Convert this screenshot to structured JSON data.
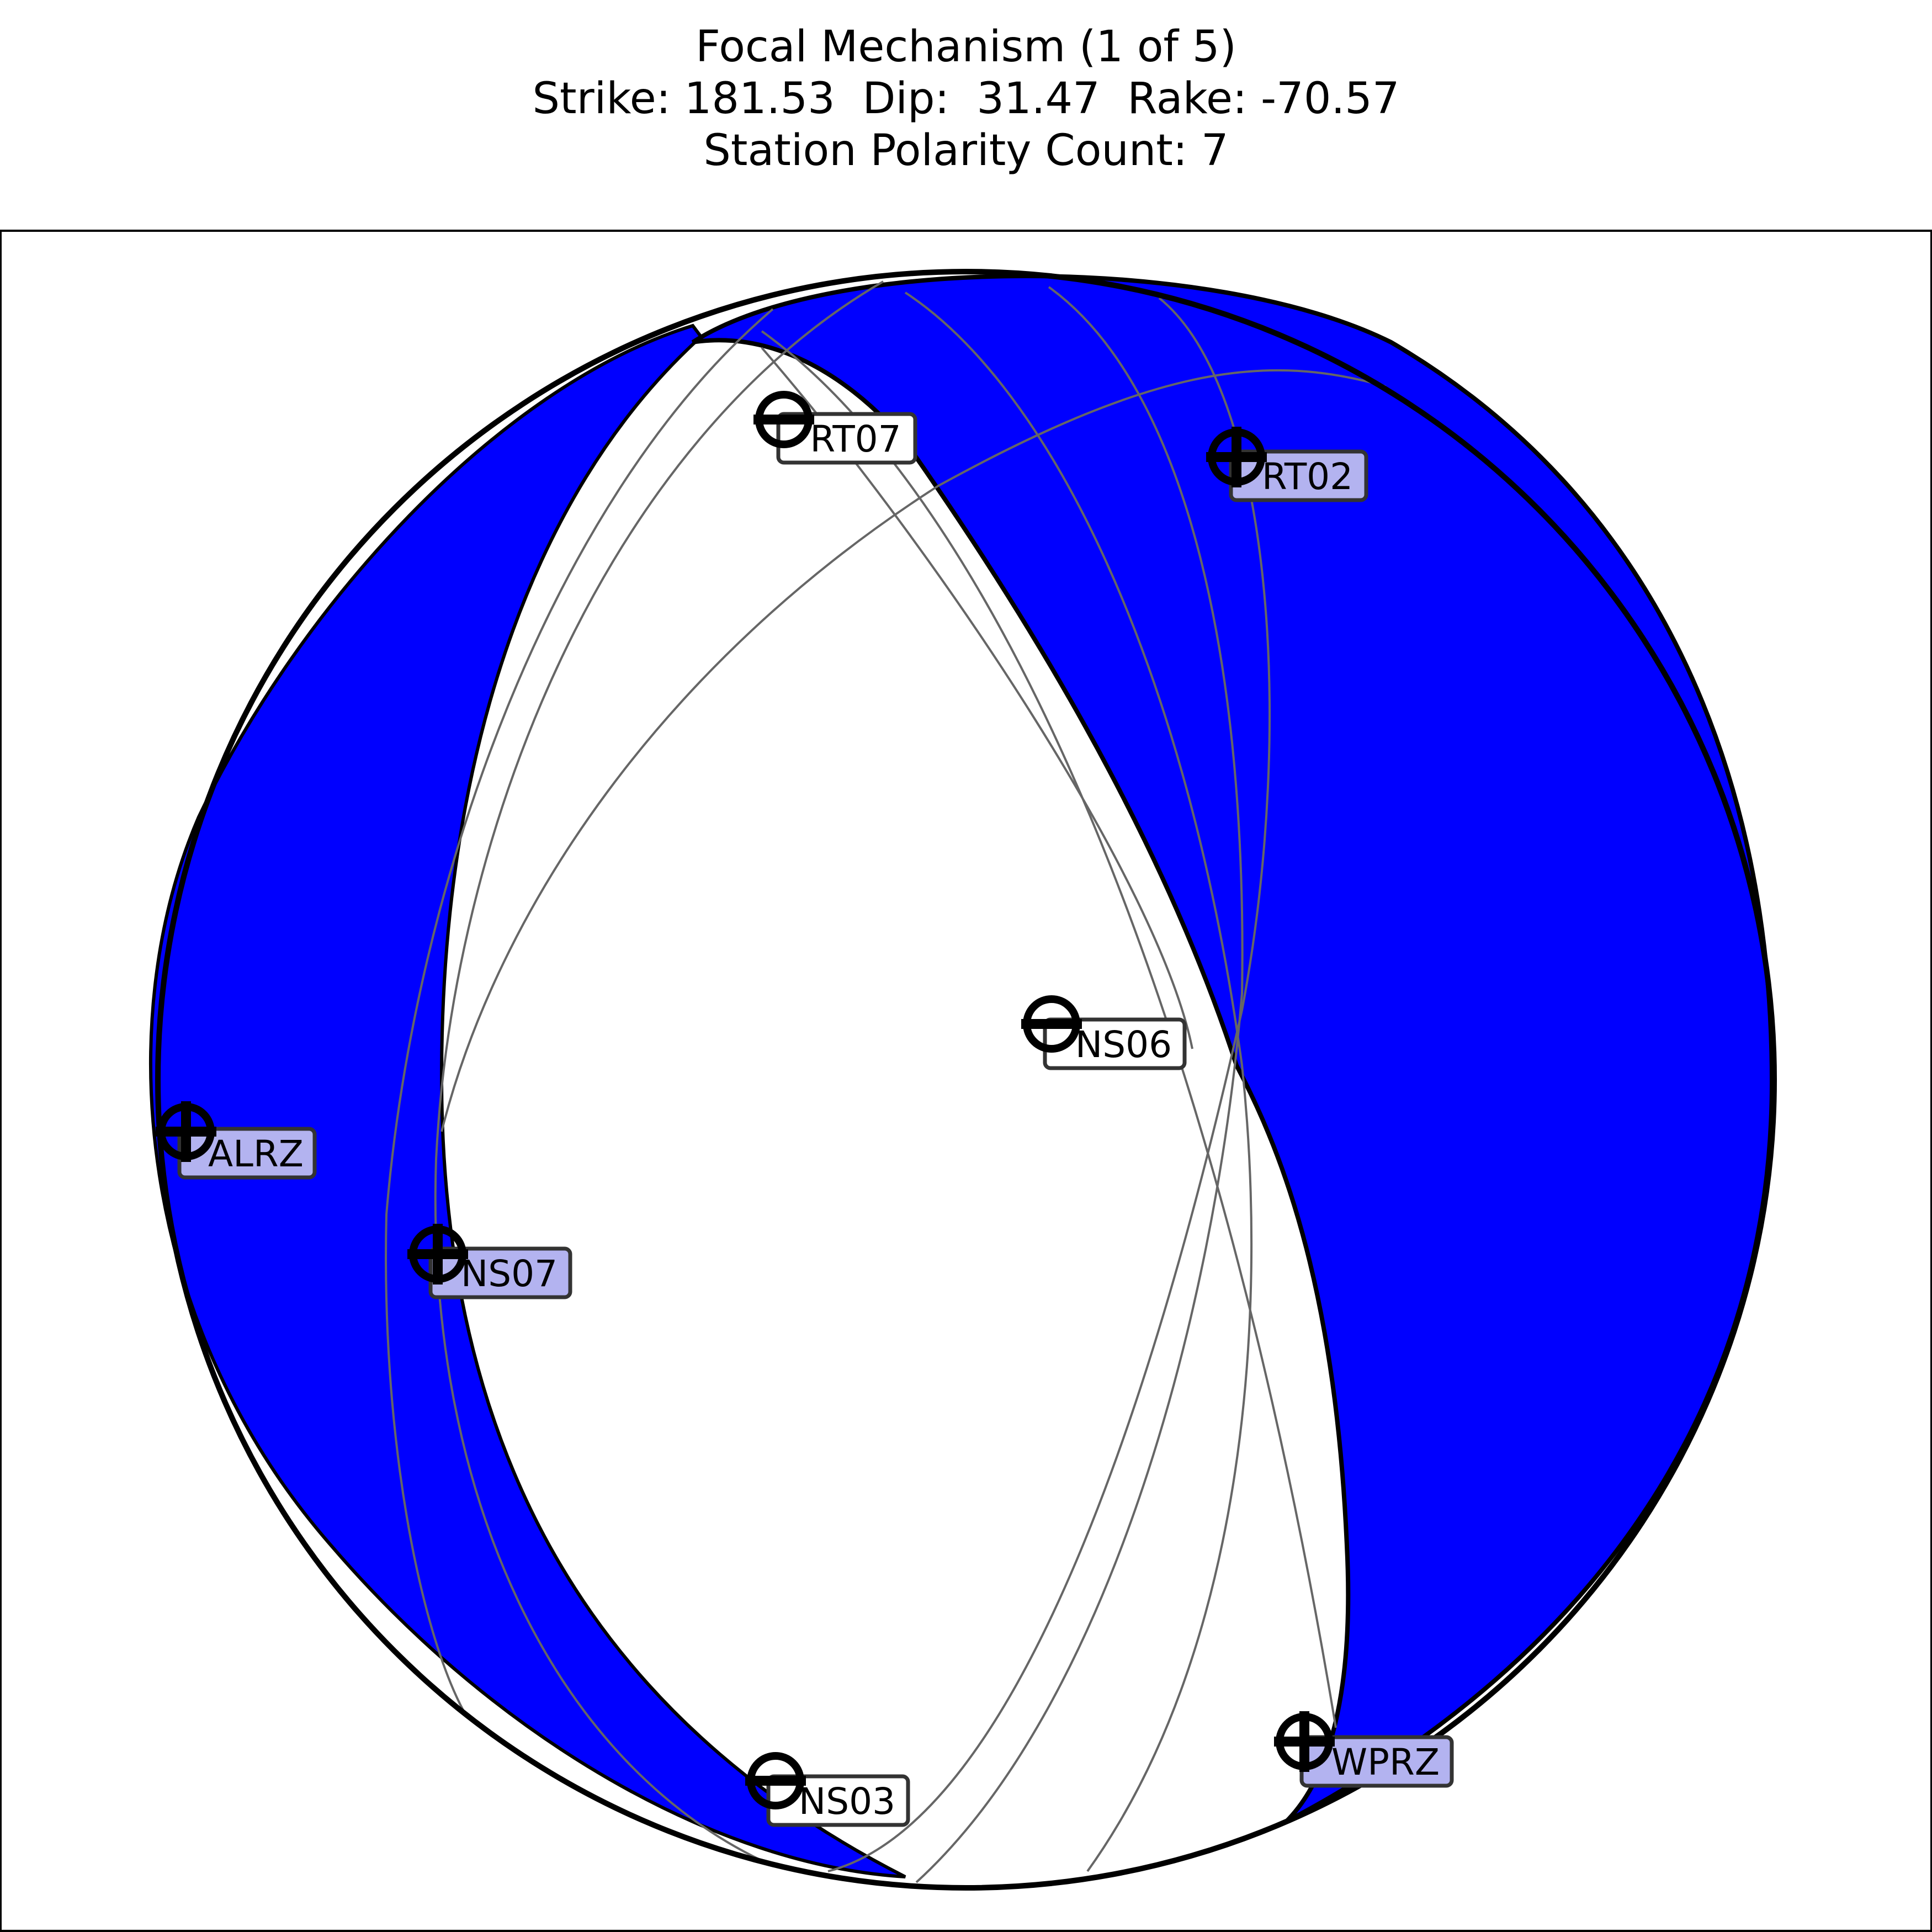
{
  "title": {
    "line1": "Focal Mechanism (1 of 5)",
    "line2": "Strike: 181.53  Dip:  31.47  Rake: -70.57",
    "line3": "Station Polarity Count: 7"
  },
  "colors": {
    "compressional_fill": "#0000ff",
    "outline": "#000000",
    "alt_planes": "#666666",
    "label_up_bg": "#b3b3f0",
    "label_down_bg": "#ffffff"
  },
  "stations": [
    {
      "name": "RT07",
      "polarity": "down"
    },
    {
      "name": "RT02",
      "polarity": "up"
    },
    {
      "name": "NS06",
      "polarity": "down"
    },
    {
      "name": "ALRZ",
      "polarity": "up"
    },
    {
      "name": "NS07",
      "polarity": "up"
    },
    {
      "name": "NS03",
      "polarity": "down"
    },
    {
      "name": "WPRZ",
      "polarity": "up"
    }
  ]
}
